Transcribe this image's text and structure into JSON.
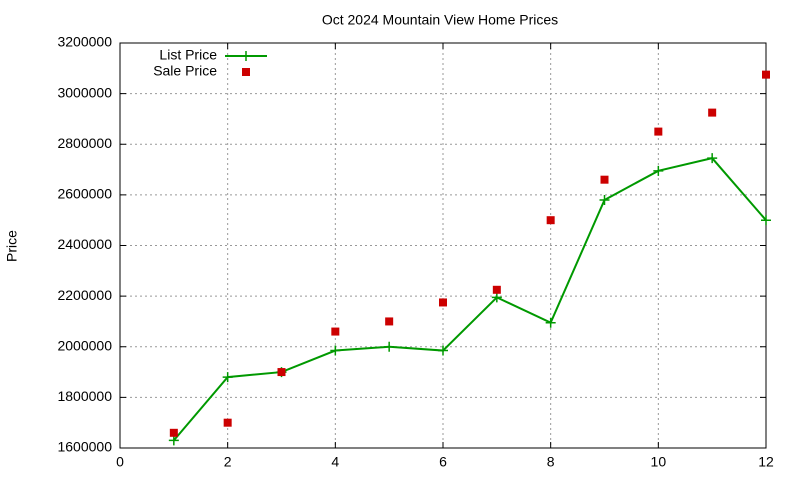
{
  "chart_data": {
    "type": "line",
    "title": "Oct 2024 Mountain View Home Prices",
    "y_label": "Price",
    "x": [
      1,
      2,
      3,
      4,
      5,
      6,
      7,
      8,
      9,
      10,
      11,
      12
    ],
    "series": [
      {
        "name": "List Price",
        "color": "#009900",
        "style": "linespoints",
        "values": [
          1630000,
          1880000,
          1900000,
          1985000,
          2000000,
          1985000,
          2195000,
          2095000,
          2580000,
          2695000,
          2745000,
          2500000
        ]
      },
      {
        "name": "Sale Price",
        "color": "#cc0000",
        "style": "points",
        "values": [
          1660000,
          1700000,
          1900000,
          2060000,
          2100000,
          2175000,
          2225000,
          2500000,
          2660000,
          2850000,
          2925000,
          3075000
        ]
      }
    ],
    "xlim": [
      0,
      12
    ],
    "xticks": [
      0,
      2,
      4,
      6,
      8,
      10,
      12
    ],
    "ylim": [
      1600000,
      3200000
    ],
    "yticks": [
      1600000,
      1800000,
      2000000,
      2200000,
      2400000,
      2600000,
      2800000,
      3000000,
      3200000
    ],
    "grid": true,
    "legend": "top-left"
  }
}
